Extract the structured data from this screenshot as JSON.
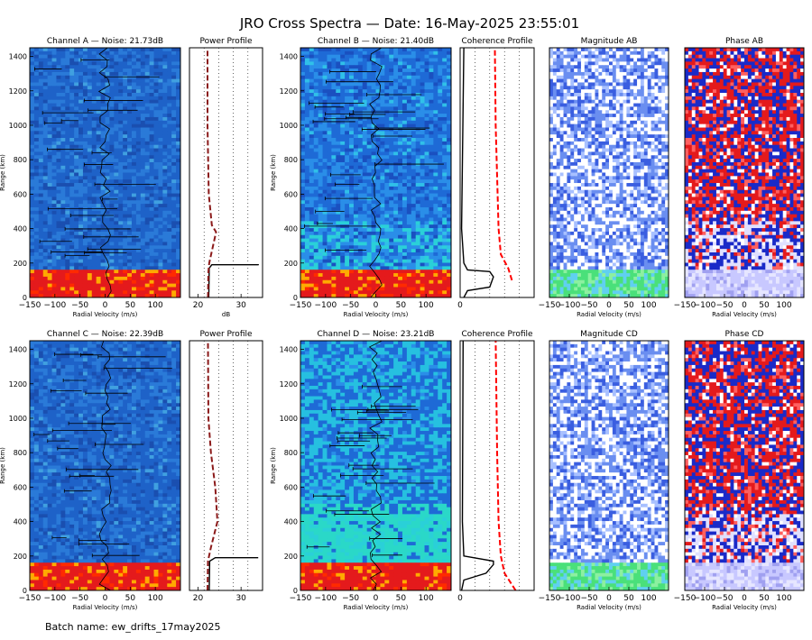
{
  "title": "JRO Cross Spectra — Date: 16-May-2025 23:55:01",
  "batch": "Batch name: ew_drifts_17may2025",
  "chart_data": [
    {
      "type": "heatmap",
      "title": "Channel A — Noise: 21.73dB",
      "xlabel": "Radial Velocity (m/s)",
      "ylabel": "Range (km)",
      "xlim": [
        -150,
        150
      ],
      "ylim": [
        0,
        1450
      ],
      "x_ticks": [
        -150,
        -100,
        -50,
        0,
        50,
        100
      ],
      "y_ticks": [
        0,
        200,
        400,
        600,
        800,
        1000,
        1200,
        1400
      ],
      "echo_layer_km": [
        0,
        170
      ]
    },
    {
      "type": "line",
      "title": "Power Profile",
      "xlabel": "dB",
      "xlim": [
        18,
        35
      ],
      "x_ticks": [
        20,
        30
      ],
      "ylim": [
        0,
        1450
      ],
      "series": [
        {
          "values": [
            [
              22.5,
              0
            ],
            [
              22.6,
              170
            ],
            [
              23.2,
              190
            ],
            [
              30,
              190
            ],
            [
              34,
              190
            ],
            [
              34,
              187
            ]
          ]
        },
        {
          "values": [
            [
              22.3,
              0
            ],
            [
              22.4,
              150
            ],
            [
              22.6,
              200
            ],
            [
              24.2,
              380
            ],
            [
              23.2,
              420
            ],
            [
              22.5,
              600
            ],
            [
              22.2,
              1000
            ],
            [
              22.2,
              1450
            ]
          ]
        }
      ]
    },
    {
      "type": "heatmap",
      "title": "Channel B — Noise: 21.40dB",
      "xlabel": "Radial Velocity (m/s)",
      "ylabel": "Range (km)",
      "xlim": [
        -150,
        150
      ],
      "ylim": [
        0,
        1450
      ],
      "x_ticks": [
        -150,
        -100,
        -50,
        0,
        50,
        100
      ],
      "y_ticks": [
        0,
        200,
        400,
        600,
        800,
        1000,
        1200,
        1400
      ],
      "echo_layer_km": [
        0,
        170
      ]
    },
    {
      "type": "line",
      "title": "Coherence Profile",
      "xlim": [
        0,
        1
      ],
      "x_ticks": [
        0
      ],
      "ylim": [
        0,
        1450
      ],
      "series": [
        {
          "values": [
            [
              0.05,
              0
            ],
            [
              0.1,
              40
            ],
            [
              0.4,
              60
            ],
            [
              0.45,
              120
            ],
            [
              0.4,
              150
            ],
            [
              0.1,
              160
            ],
            [
              0.05,
              200
            ],
            [
              0.02,
              400
            ],
            [
              0.05,
              1450
            ]
          ]
        },
        {
          "values": [
            [
              0.7,
              100
            ],
            [
              0.65,
              170
            ],
            [
              0.55,
              250
            ],
            [
              0.52,
              400
            ],
            [
              0.5,
              700
            ],
            [
              0.48,
              1000
            ],
            [
              0.47,
              1450
            ]
          ]
        }
      ]
    },
    {
      "type": "heatmap",
      "title": "Magnitude AB",
      "xlabel": "Radial Velocity (m/s)",
      "xlim": [
        -150,
        150
      ],
      "ylim": [
        0,
        1450
      ],
      "x_ticks": [
        -150,
        -100,
        -50,
        0,
        50,
        100
      ],
      "x_tick_labels": [
        "−150",
        "−100",
        "−50",
        "0",
        "50",
        "100"
      ]
    },
    {
      "type": "heatmap",
      "title": "Phase AB",
      "xlabel": "Radial Velocity (m/s)",
      "xlim": [
        -150,
        150
      ],
      "ylim": [
        0,
        1450
      ],
      "x_ticks": [
        -150,
        -100,
        -50,
        0,
        50,
        100
      ],
      "x_tick_labels": [
        "−150",
        "−100",
        "−50",
        "0",
        "50",
        "100"
      ]
    },
    {
      "type": "heatmap",
      "title": "Channel C — Noise: 22.39dB",
      "xlabel": "Radial Velocity (m/s)",
      "ylabel": "Range (km)",
      "xlim": [
        -150,
        150
      ],
      "ylim": [
        0,
        1450
      ],
      "x_ticks": [
        -150,
        -100,
        -50,
        0,
        50,
        100
      ],
      "y_ticks": [
        0,
        200,
        400,
        600,
        800,
        1000,
        1200,
        1400
      ],
      "echo_layer_km": [
        0,
        170
      ]
    },
    {
      "type": "line",
      "title": "Power Profile",
      "xlim": [
        18,
        35
      ],
      "x_ticks": [
        20,
        30
      ],
      "ylim": [
        0,
        1450
      ],
      "series": [
        {
          "values": [
            [
              22.6,
              0
            ],
            [
              22.7,
              170
            ],
            [
              24,
              190
            ],
            [
              30,
              190
            ],
            [
              34,
              190
            ]
          ]
        },
        {
          "values": [
            [
              22.2,
              0
            ],
            [
              22.3,
              170
            ],
            [
              23,
              250
            ],
            [
              24.5,
              400
            ],
            [
              24,
              600
            ],
            [
              23,
              800
            ],
            [
              22.4,
              1000
            ],
            [
              22.3,
              1450
            ]
          ]
        }
      ]
    },
    {
      "type": "heatmap",
      "title": "Channel D — Noise: 23.21dB",
      "xlabel": "Radial Velocity (m/s)",
      "ylabel": "Range (km)",
      "xlim": [
        -150,
        150
      ],
      "ylim": [
        0,
        1450
      ],
      "x_ticks": [
        -150,
        -100,
        -50,
        0,
        50,
        100
      ],
      "y_ticks": [
        0,
        200,
        400,
        600,
        800,
        1000,
        1200,
        1400
      ],
      "echo_layer_km": [
        0,
        170
      ]
    },
    {
      "type": "line",
      "title": "Coherence Profile",
      "xlim": [
        0,
        1
      ],
      "x_ticks": [
        0
      ],
      "ylim": [
        0,
        1450
      ],
      "series": [
        {
          "values": [
            [
              0.02,
              0
            ],
            [
              0.05,
              60
            ],
            [
              0.35,
              100
            ],
            [
              0.45,
              150
            ],
            [
              0.45,
              170
            ],
            [
              0.05,
              200
            ],
            [
              0.03,
              400
            ],
            [
              0.04,
              1450
            ]
          ]
        },
        {
          "values": [
            [
              0.75,
              0
            ],
            [
              0.6,
              100
            ],
            [
              0.55,
              200
            ],
            [
              0.52,
              400
            ],
            [
              0.5,
              800
            ],
            [
              0.48,
              1450
            ]
          ]
        }
      ]
    },
    {
      "type": "heatmap",
      "title": "Magnitude CD",
      "xlabel": "Radial Velocity (m/s)",
      "xlim": [
        -150,
        150
      ],
      "ylim": [
        0,
        1450
      ],
      "x_ticks": [
        -150,
        -100,
        -50,
        0,
        50,
        100
      ],
      "x_tick_labels": [
        "−150",
        "−100",
        "−50",
        "0",
        "50",
        "100"
      ]
    },
    {
      "type": "heatmap",
      "title": "Phase CD",
      "xlabel": "Radial Velocity (m/s)",
      "xlim": [
        -150,
        150
      ],
      "ylim": [
        0,
        1450
      ],
      "x_ticks": [
        -150,
        -100,
        -50,
        0,
        50,
        100
      ],
      "x_tick_labels": [
        "−150",
        "−100",
        "−50",
        "0",
        "50",
        "100"
      ]
    }
  ],
  "colors": {
    "solid_line": "#000000",
    "dashed_line_power": "#8b1a1a",
    "dashed_line_coherence": "#ff0000"
  }
}
